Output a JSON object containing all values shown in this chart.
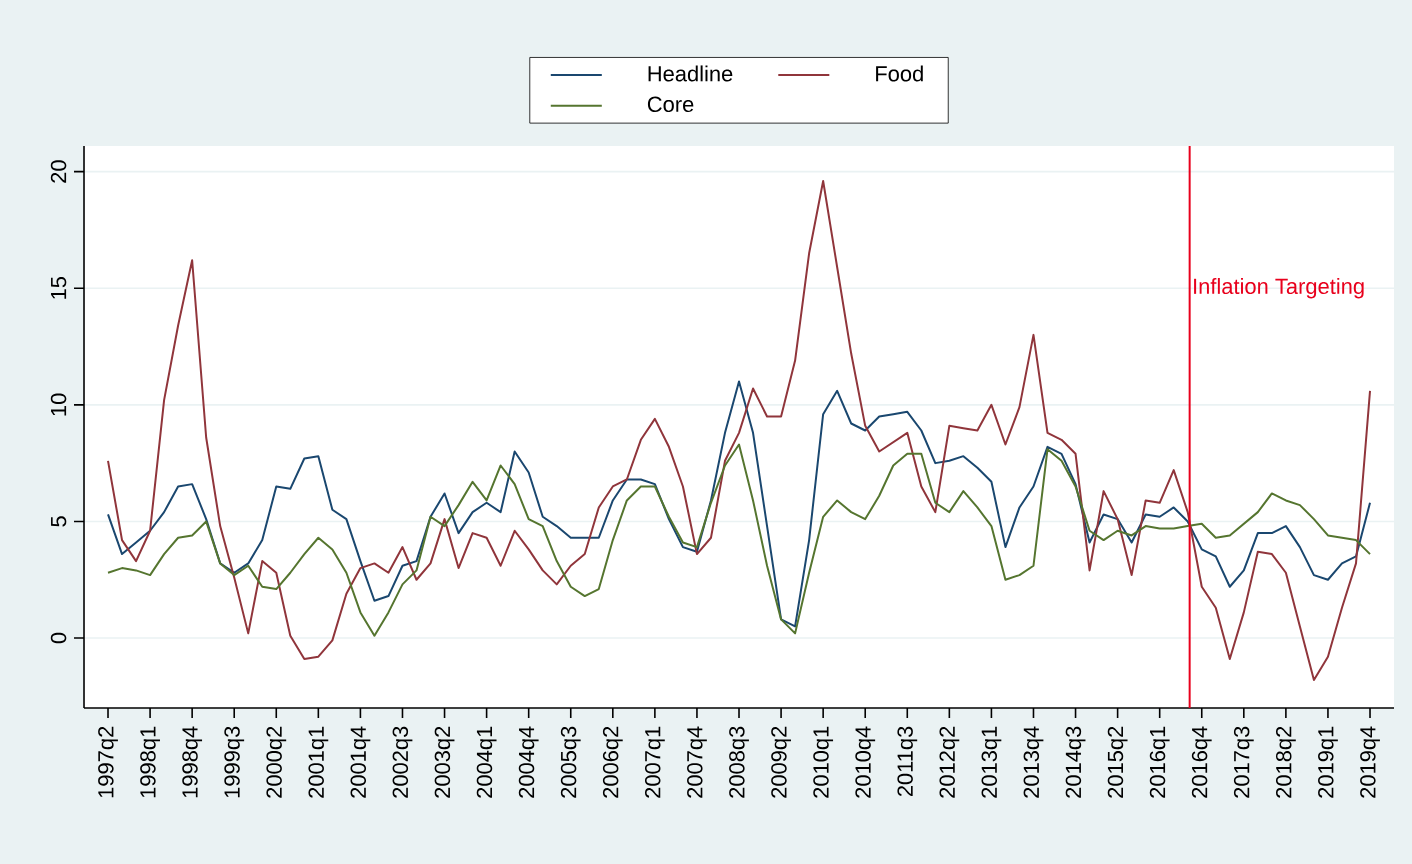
{
  "chart_data": {
    "type": "line",
    "categories": [
      "1997q2",
      null,
      null,
      "1998q1",
      null,
      null,
      "1998q4",
      null,
      null,
      "1999q3",
      null,
      null,
      "2000q2",
      null,
      null,
      "2001q1",
      null,
      null,
      "2001q4",
      null,
      null,
      "2002q3",
      null,
      null,
      "2003q2",
      null,
      null,
      "2004q1",
      null,
      null,
      "2004q4",
      null,
      null,
      "2005q3",
      null,
      null,
      "2006q2",
      null,
      null,
      "2007q1",
      null,
      null,
      "2007q4",
      null,
      null,
      "2008q3",
      null,
      null,
      "2009q2",
      null,
      null,
      "2010q1",
      null,
      null,
      "2010q4",
      null,
      null,
      "2011q3",
      null,
      null,
      "2012q2",
      null,
      null,
      "2013q1",
      null,
      null,
      "2013q4",
      null,
      null,
      "2014q3",
      null,
      null,
      "2015q2",
      null,
      null,
      "2016q1",
      null,
      null,
      "2016q4",
      null,
      null,
      "2017q3",
      null,
      null,
      "2018q2",
      null,
      null,
      "2019q1",
      null,
      null,
      "2019q4"
    ],
    "series": [
      {
        "name": "Headline",
        "color": "#1a476f",
        "values": [
          5.3,
          3.6,
          4.1,
          4.6,
          5.4,
          6.5,
          6.6,
          5.1,
          3.2,
          2.8,
          3.2,
          4.2,
          6.5,
          6.4,
          7.7,
          7.8,
          5.5,
          5.1,
          3.3,
          1.6,
          1.8,
          3.1,
          3.3,
          5.2,
          6.2,
          4.5,
          5.4,
          5.8,
          5.4,
          8.0,
          7.1,
          5.2,
          4.8,
          4.3,
          4.3,
          4.3,
          5.9,
          6.8,
          6.8,
          6.6,
          5.1,
          3.9,
          3.7,
          5.9,
          8.8,
          11.0,
          8.8,
          4.8,
          0.8,
          0.5,
          4.2,
          9.6,
          10.6,
          9.2,
          8.9,
          9.5,
          9.6,
          9.7,
          8.9,
          7.5,
          7.6,
          7.8,
          7.3,
          6.7,
          3.9,
          5.6,
          6.5,
          8.2,
          7.9,
          6.6,
          4.1,
          5.3,
          5.1,
          4.1,
          5.3,
          5.2,
          5.6,
          5.0,
          3.8,
          3.5,
          2.2,
          2.9,
          4.5,
          4.5,
          4.8,
          3.9,
          2.7,
          2.5,
          3.2,
          3.5,
          5.8
        ]
      },
      {
        "name": "Food",
        "color": "#90353b",
        "values": [
          7.6,
          4.2,
          3.3,
          4.6,
          10.2,
          13.4,
          16.2,
          8.6,
          4.8,
          2.6,
          0.2,
          3.3,
          2.8,
          0.1,
          -0.9,
          -0.8,
          -0.1,
          1.9,
          3.0,
          3.2,
          2.8,
          3.9,
          2.5,
          3.2,
          5.1,
          3.0,
          4.5,
          4.3,
          3.1,
          4.6,
          3.8,
          2.9,
          2.3,
          3.1,
          3.6,
          5.6,
          6.5,
          6.8,
          8.5,
          9.4,
          8.2,
          6.5,
          3.6,
          4.3,
          7.6,
          8.8,
          10.7,
          9.5,
          9.5,
          11.9,
          16.5,
          19.6,
          15.9,
          12.2,
          9.1,
          8.0,
          8.4,
          8.8,
          6.5,
          5.4,
          9.1,
          9.0,
          8.9,
          10.0,
          8.3,
          9.9,
          13.0,
          8.8,
          8.5,
          7.9,
          2.9,
          6.3,
          5.1,
          2.7,
          5.9,
          5.8,
          7.2,
          5.4,
          2.2,
          1.3,
          -0.9,
          1.1,
          3.7,
          3.6,
          2.8,
          0.5,
          -1.8,
          -0.8,
          1.3,
          3.2,
          10.6
        ]
      },
      {
        "name": "Core",
        "color": "#55752f",
        "values": [
          2.8,
          3.0,
          2.9,
          2.7,
          3.6,
          4.3,
          4.4,
          5.0,
          3.2,
          2.7,
          3.1,
          2.2,
          2.1,
          2.8,
          3.6,
          4.3,
          3.8,
          2.8,
          1.1,
          0.1,
          1.1,
          2.3,
          2.9,
          5.2,
          4.8,
          5.7,
          6.7,
          5.9,
          7.4,
          6.6,
          5.1,
          4.8,
          3.3,
          2.2,
          1.8,
          2.1,
          4.2,
          5.9,
          6.5,
          6.5,
          5.2,
          4.1,
          3.9,
          5.8,
          7.4,
          8.3,
          5.9,
          3.1,
          0.8,
          0.2,
          2.8,
          5.2,
          5.9,
          5.4,
          5.1,
          6.1,
          7.4,
          7.9,
          7.9,
          5.8,
          5.4,
          6.3,
          5.6,
          4.8,
          2.5,
          2.7,
          3.1,
          8.1,
          7.6,
          6.5,
          4.6,
          4.2,
          4.6,
          4.4,
          4.8,
          4.7,
          4.7,
          4.8,
          4.9,
          4.3,
          4.4,
          4.9,
          5.4,
          6.2,
          5.9,
          5.7,
          5.1,
          4.4,
          4.3,
          4.2,
          3.6
        ]
      }
    ],
    "ylim": [
      -3,
      21.1
    ],
    "yticks": [
      0,
      5,
      10,
      15,
      20
    ],
    "annotations": [
      "Inflation Targeting"
    ],
    "grid": "y",
    "legend": "top"
  }
}
